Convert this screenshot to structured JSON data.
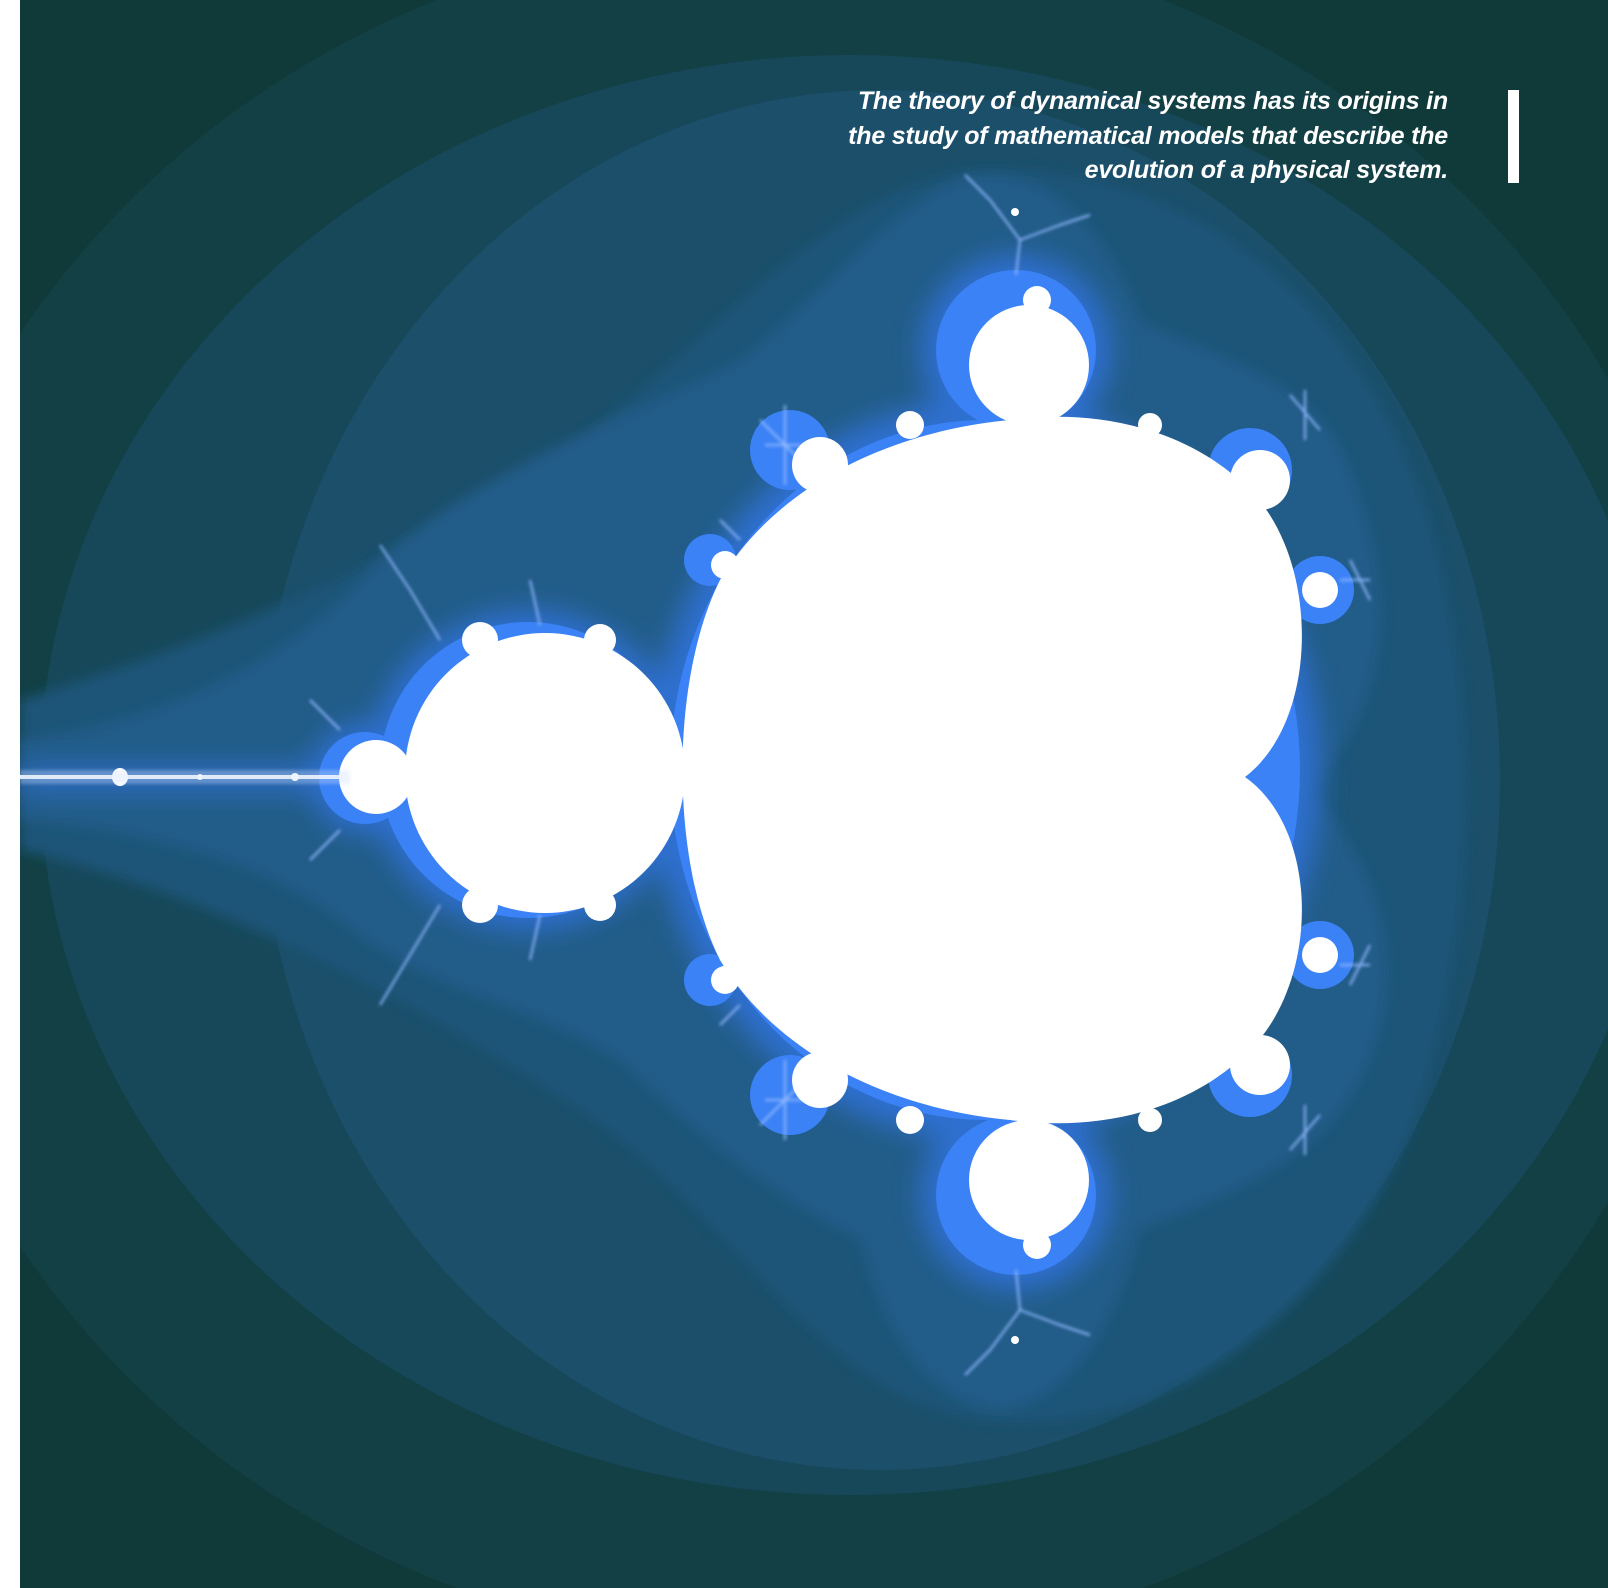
{
  "quote": {
    "line1": "The theory of dynamical systems has its origins in",
    "line2": "the study of mathematical models that describe the",
    "line3": "evolution of a physical system."
  },
  "colors": {
    "page_margin": "#ffffff",
    "outer": "#103a3a",
    "band1": "#124045",
    "band2": "#17485a",
    "band3": "#1b4f6a",
    "band4": "#1e5478",
    "band5": "#225b88",
    "glow": "#2f6fd0",
    "edge": "#3b82f6",
    "set": "#ffffff",
    "quote_text": "#ffffff"
  },
  "image": {
    "subject": "Mandelbrot set fractal",
    "icon": "mandelbrot-fractal"
  }
}
